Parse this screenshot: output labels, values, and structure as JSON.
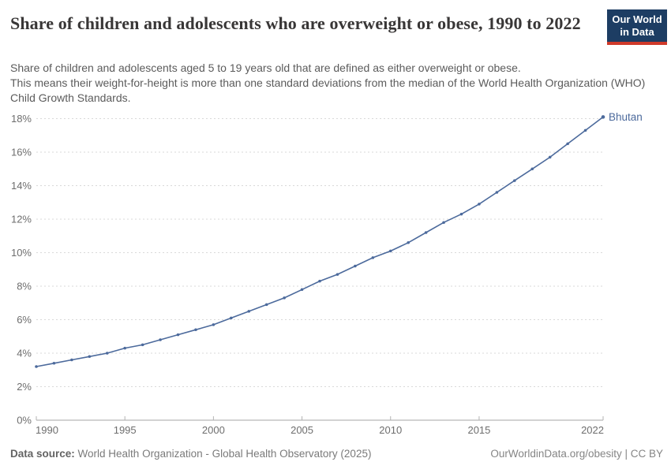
{
  "header": {
    "title": "Share of children and adolescents who are overweight or obese, 1990 to 2022",
    "subtitle": "Share of children and adolescents aged 5 to 19 years old that are defined as either overweight or obese.\nThis means their weight-for-height is more than one standard deviations from the median of the World Health Organization (WHO) Child Growth Standards.",
    "logo_line1": "Our World",
    "logo_line2": "in Data"
  },
  "chart_data": {
    "type": "line",
    "title": "Share of children and adolescents who are overweight or obese, 1990 to 2022",
    "xlabel": "",
    "ylabel": "",
    "xlim": [
      1990,
      2022
    ],
    "ylim": [
      0,
      18
    ],
    "grid": "horizontal-dashed",
    "legend_position": "end-of-line-label",
    "x_ticks": [
      1990,
      1995,
      2000,
      2005,
      2010,
      2015,
      2022
    ],
    "y_ticks": [
      0,
      2,
      4,
      6,
      8,
      10,
      12,
      14,
      16,
      18
    ],
    "y_tick_suffix": "%",
    "series": [
      {
        "name": "Bhutan",
        "color": "#4C6A9C",
        "x": [
          1990,
          1991,
          1992,
          1993,
          1994,
          1995,
          1996,
          1997,
          1998,
          1999,
          2000,
          2001,
          2002,
          2003,
          2004,
          2005,
          2006,
          2007,
          2008,
          2009,
          2010,
          2011,
          2012,
          2013,
          2014,
          2015,
          2016,
          2017,
          2018,
          2019,
          2020,
          2021,
          2022
        ],
        "values": [
          3.2,
          3.4,
          3.6,
          3.8,
          4.0,
          4.3,
          4.5,
          4.8,
          5.1,
          5.4,
          5.7,
          6.1,
          6.5,
          6.9,
          7.3,
          7.8,
          8.3,
          8.7,
          9.2,
          9.7,
          10.1,
          10.6,
          11.2,
          11.8,
          12.3,
          12.9,
          13.6,
          14.3,
          15.0,
          15.7,
          16.5,
          17.3,
          18.1
        ]
      }
    ]
  },
  "footer": {
    "source_label": "Data source:",
    "source_text": " World Health Organization - Global Health Observatory (2025)",
    "credit": "OurWorldinData.org/obesity | CC BY"
  },
  "colors": {
    "accent_line": "#4C6A9C",
    "logo_bg": "#1d3d63",
    "logo_stripe": "#cf3a2a",
    "gridline": "#d9d9d9",
    "axis": "#a6a6a6",
    "tick_label": "#6e6e6e",
    "title_text": "#383636",
    "subtitle_text": "#5b5b5b"
  }
}
